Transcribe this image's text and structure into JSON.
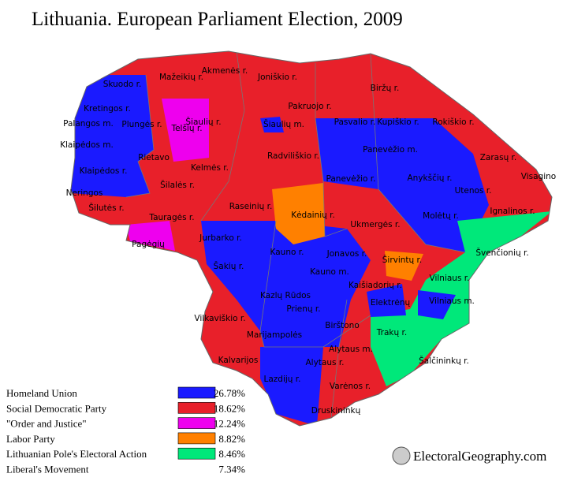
{
  "title": "Lithuania. European Parliament Election, 2009",
  "regions": [
    "Akmenės r.",
    "Mažeikių r.",
    "Joniškio r.",
    "Skuodo r.",
    "Biržų r.",
    "Kretingos r.",
    "Pakruojo r.",
    "Šiaulių r.",
    "Telšių r.",
    "Palangos m.",
    "Plungės r.",
    "Šiaulių m.",
    "Pasvalio r.",
    "Kupiškio r.",
    "Rokiškio r.",
    "Klaipėdos m.",
    "Panevėžio m.",
    "Rietavo",
    "Kelmės r.",
    "Radviliškio r.",
    "Zarasų r.",
    "Klaipėdos r.",
    "Visagino",
    "Panevėžio r.",
    "Anykščių r.",
    "Šilalės r.",
    "Utenos r.",
    "Neringos",
    "Raseinių r.",
    "Kėdainių r.",
    "Šilutės r.",
    "Tauragės r.",
    "Ignalinos r.",
    "Molėtų r.",
    "Ukmergės r.",
    "Pagėgių",
    "Jurbarko r.",
    "Švenčionių r.",
    "Kauno r.",
    "Jonavos r.",
    "Širvintų r.",
    "Šakių r.",
    "Kauno m.",
    "Vilniaus r.",
    "Kaišiadorių r.",
    "Kazlų Rūdos",
    "Elektrėnų",
    "Vilniaus m.",
    "Prienų r.",
    "Vilkaviškio r.",
    "Birštono",
    "Trakų r.",
    "Marijampolės",
    "Alytaus m.",
    "Kalvarijos",
    "Alytaus r.",
    "Šalčininkų r.",
    "Varėnos r.",
    "Lazdijų r.",
    "Druskininkų"
  ],
  "legend": [
    {
      "name": "Homeland Union",
      "color": "#1a1aff",
      "share": "26.78%"
    },
    {
      "name": "Social Democratic Party",
      "color": "#e8202a",
      "share": "18.62%"
    },
    {
      "name": "\"Order and Justice\"",
      "color": "#ee00ee",
      "share": "12.24%"
    },
    {
      "name": "Labor Party",
      "color": "#ff8000",
      "share": "8.82%"
    },
    {
      "name": "Lithuanian Pole's Electoral Action",
      "color": "#00e87a",
      "share": "8.46%"
    },
    {
      "name": "Liberal's Movement",
      "share": "7.34%"
    }
  ],
  "watermark": "ElectoralGeography.com"
}
